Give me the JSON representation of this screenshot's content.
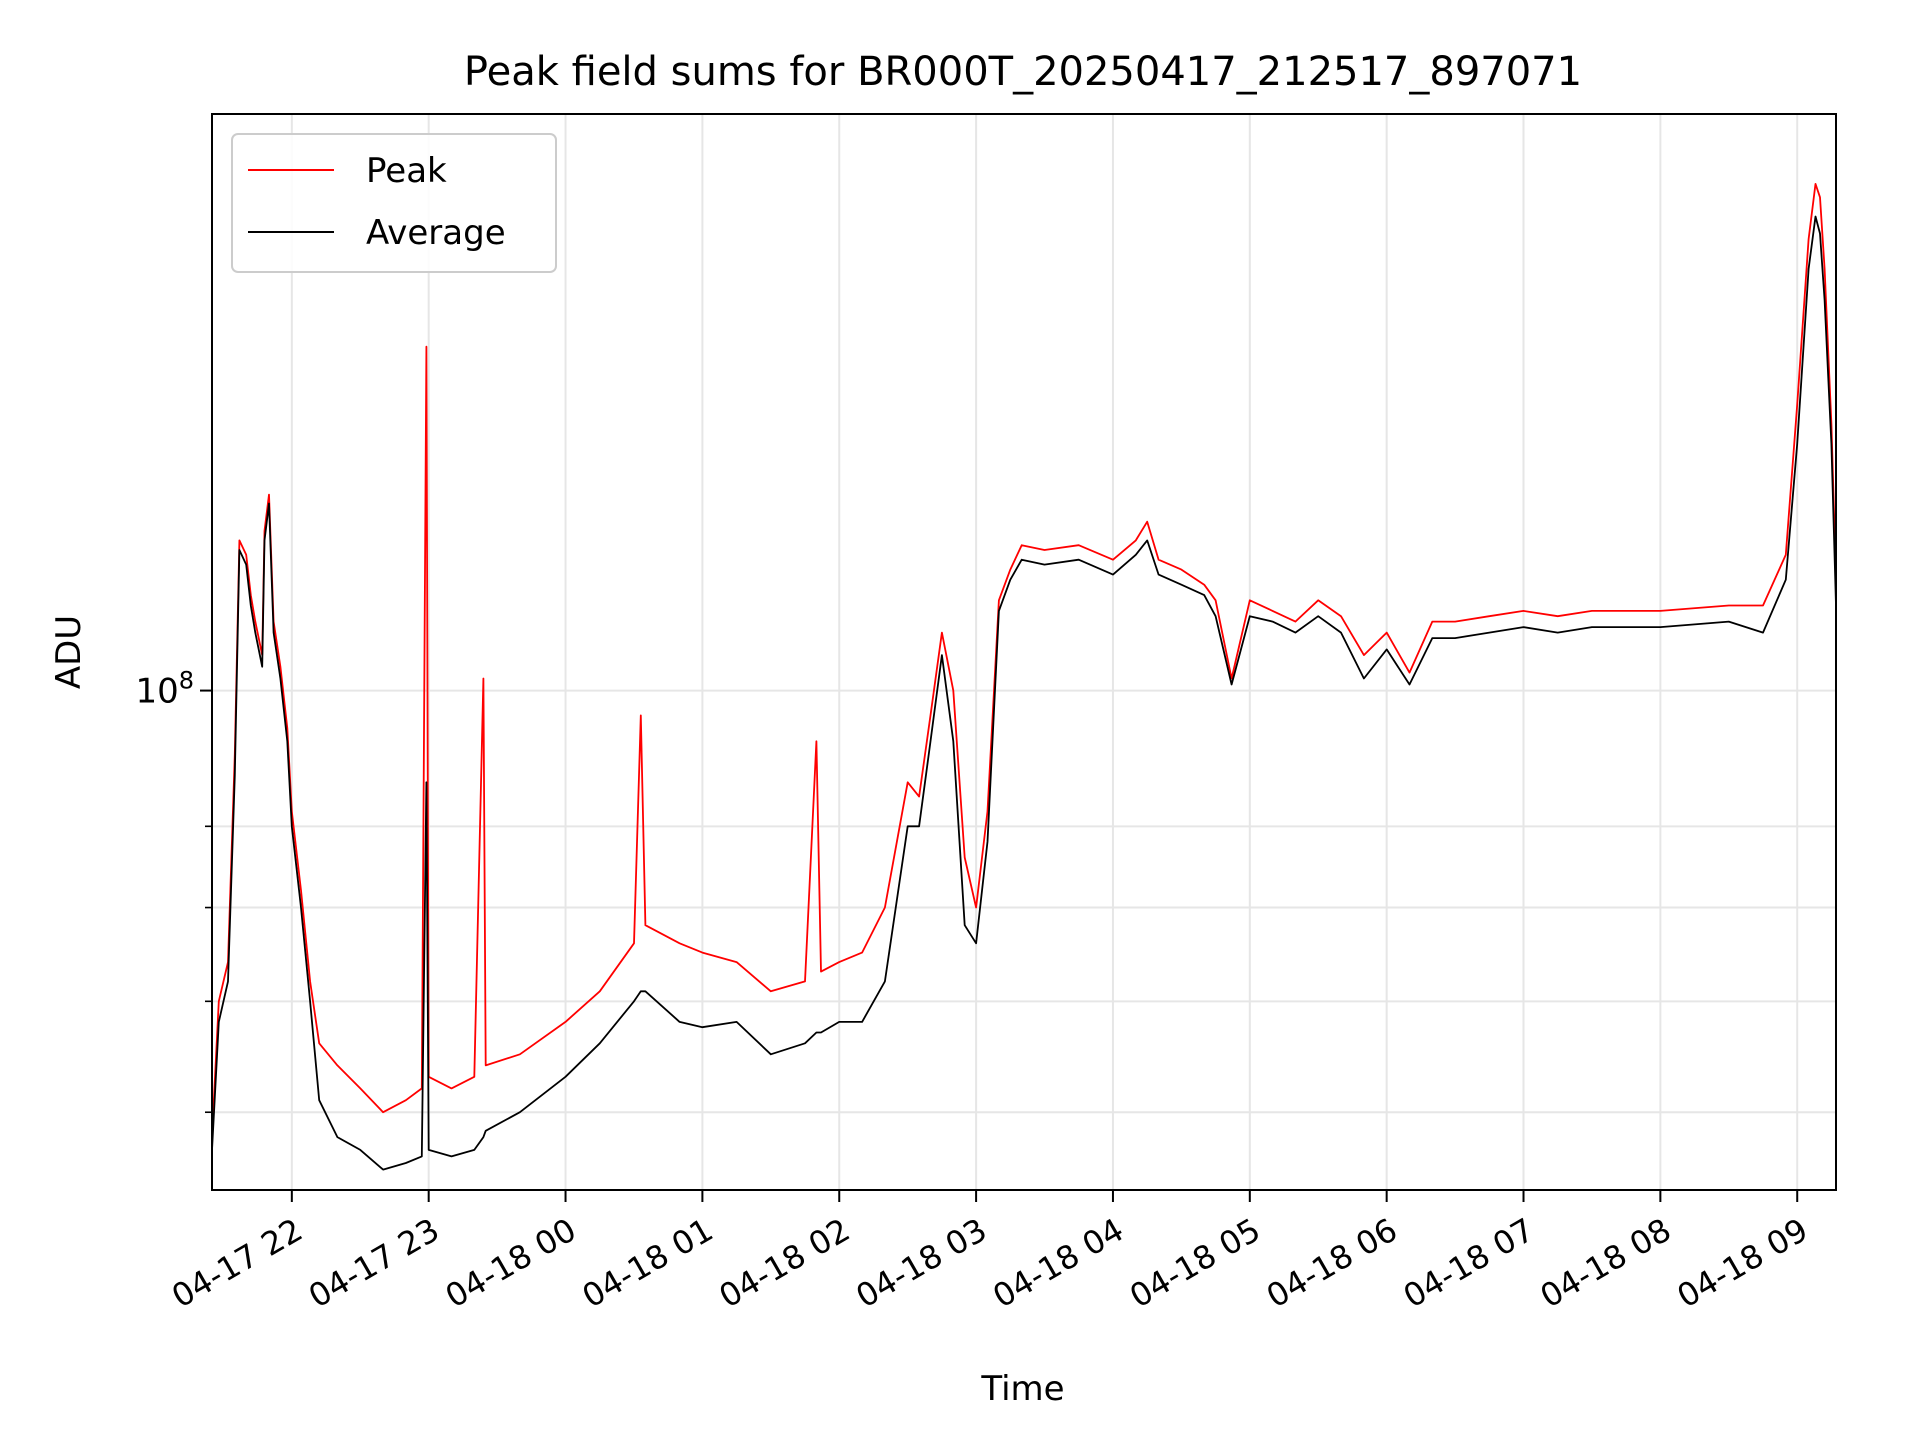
{
  "chart_data": {
    "type": "line",
    "title": "Peak field sums for BR000T_20250417_212517_897071",
    "xlabel": "Time",
    "ylabel": "ADU",
    "y_scale": "log",
    "ylim": [
      44000000,
      258000000
    ],
    "xlim": [
      "2025-04-17T21:25",
      "2025-04-18T09:17"
    ],
    "grid": true,
    "legend_position": "top-left",
    "x_ticks": [
      "04-17 22",
      "04-17 23",
      "04-18 00",
      "04-18 01",
      "04-18 02",
      "04-18 03",
      "04-18 04",
      "04-18 05",
      "04-18 06",
      "04-18 07",
      "04-18 08",
      "04-18 09"
    ],
    "y_major_tick": {
      "value": 100000000,
      "base": "10",
      "exponent": "8"
    },
    "y_minor_ticks": [
      50000000,
      60000000,
      70000000,
      80000000
    ],
    "colors": {
      "Peak": "#ff0000",
      "Average": "#000000"
    },
    "series": [
      {
        "name": "Peak",
        "points": [
          [
            "2025-04-17T21:25",
            48000000
          ],
          [
            "2025-04-17T21:28",
            60000000
          ],
          [
            "2025-04-17T21:32",
            64000000
          ],
          [
            "2025-04-17T21:35",
            90000000
          ],
          [
            "2025-04-17T21:37",
            128000000
          ],
          [
            "2025-04-17T21:40",
            125000000
          ],
          [
            "2025-04-17T21:42",
            117000000
          ],
          [
            "2025-04-17T21:44",
            112000000
          ],
          [
            "2025-04-17T21:47",
            106000000
          ],
          [
            "2025-04-17T21:48",
            130000000
          ],
          [
            "2025-04-17T21:50",
            138000000
          ],
          [
            "2025-04-17T21:52",
            112000000
          ],
          [
            "2025-04-17T21:55",
            104000000
          ],
          [
            "2025-04-17T21:58",
            94000000
          ],
          [
            "2025-04-17T22:00",
            82000000
          ],
          [
            "2025-04-17T22:04",
            72000000
          ],
          [
            "2025-04-17T22:08",
            62000000
          ],
          [
            "2025-04-17T22:12",
            56000000
          ],
          [
            "2025-04-17T22:20",
            54000000
          ],
          [
            "2025-04-17T22:30",
            52000000
          ],
          [
            "2025-04-17T22:40",
            50000000
          ],
          [
            "2025-04-17T22:50",
            51000000
          ],
          [
            "2025-04-17T22:57",
            52000000
          ],
          [
            "2025-04-17T22:59",
            176000000
          ],
          [
            "2025-04-17T23:00",
            53000000
          ],
          [
            "2025-04-17T23:10",
            52000000
          ],
          [
            "2025-04-17T23:20",
            53000000
          ],
          [
            "2025-04-17T23:24",
            102000000
          ],
          [
            "2025-04-17T23:25",
            54000000
          ],
          [
            "2025-04-17T23:40",
            55000000
          ],
          [
            "2025-04-18T00:00",
            58000000
          ],
          [
            "2025-04-18T00:15",
            61000000
          ],
          [
            "2025-04-18T00:30",
            66000000
          ],
          [
            "2025-04-18T00:33",
            96000000
          ],
          [
            "2025-04-18T00:35",
            68000000
          ],
          [
            "2025-04-18T00:50",
            66000000
          ],
          [
            "2025-04-18T01:00",
            65000000
          ],
          [
            "2025-04-18T01:15",
            64000000
          ],
          [
            "2025-04-18T01:30",
            61000000
          ],
          [
            "2025-04-18T01:45",
            62000000
          ],
          [
            "2025-04-18T01:50",
            92000000
          ],
          [
            "2025-04-18T01:52",
            63000000
          ],
          [
            "2025-04-18T02:00",
            64000000
          ],
          [
            "2025-04-18T02:10",
            65000000
          ],
          [
            "2025-04-18T02:20",
            70000000
          ],
          [
            "2025-04-18T02:30",
            86000000
          ],
          [
            "2025-04-18T02:35",
            84000000
          ],
          [
            "2025-04-18T02:40",
            96000000
          ],
          [
            "2025-04-18T02:45",
            110000000
          ],
          [
            "2025-04-18T02:50",
            100000000
          ],
          [
            "2025-04-18T02:55",
            76000000
          ],
          [
            "2025-04-18T03:00",
            70000000
          ],
          [
            "2025-04-18T03:05",
            82000000
          ],
          [
            "2025-04-18T03:10",
            116000000
          ],
          [
            "2025-04-18T03:15",
            122000000
          ],
          [
            "2025-04-18T03:20",
            127000000
          ],
          [
            "2025-04-18T03:30",
            126000000
          ],
          [
            "2025-04-18T03:45",
            127000000
          ],
          [
            "2025-04-18T04:00",
            124000000
          ],
          [
            "2025-04-18T04:10",
            128000000
          ],
          [
            "2025-04-18T04:15",
            132000000
          ],
          [
            "2025-04-18T04:20",
            124000000
          ],
          [
            "2025-04-18T04:30",
            122000000
          ],
          [
            "2025-04-18T04:40",
            119000000
          ],
          [
            "2025-04-18T04:45",
            116000000
          ],
          [
            "2025-04-18T04:52",
            102000000
          ],
          [
            "2025-04-18T05:00",
            116000000
          ],
          [
            "2025-04-18T05:10",
            114000000
          ],
          [
            "2025-04-18T05:20",
            112000000
          ],
          [
            "2025-04-18T05:30",
            116000000
          ],
          [
            "2025-04-18T05:40",
            113000000
          ],
          [
            "2025-04-18T05:50",
            106000000
          ],
          [
            "2025-04-18T06:00",
            110000000
          ],
          [
            "2025-04-18T06:10",
            103000000
          ],
          [
            "2025-04-18T06:20",
            112000000
          ],
          [
            "2025-04-18T06:30",
            112000000
          ],
          [
            "2025-04-18T06:45",
            113000000
          ],
          [
            "2025-04-18T07:00",
            114000000
          ],
          [
            "2025-04-18T07:15",
            113000000
          ],
          [
            "2025-04-18T07:30",
            114000000
          ],
          [
            "2025-04-18T07:45",
            114000000
          ],
          [
            "2025-04-18T08:00",
            114000000
          ],
          [
            "2025-04-18T08:30",
            115000000
          ],
          [
            "2025-04-18T08:45",
            115000000
          ],
          [
            "2025-04-18T08:55",
            125000000
          ],
          [
            "2025-04-18T09:00",
            160000000
          ],
          [
            "2025-04-18T09:05",
            210000000
          ],
          [
            "2025-04-18T09:08",
            230000000
          ],
          [
            "2025-04-18T09:10",
            225000000
          ],
          [
            "2025-04-18T09:12",
            200000000
          ],
          [
            "2025-04-18T09:15",
            155000000
          ],
          [
            "2025-04-18T09:17",
            120000000
          ]
        ]
      },
      {
        "name": "Average",
        "points": [
          [
            "2025-04-17T21:25",
            47000000
          ],
          [
            "2025-04-17T21:28",
            58000000
          ],
          [
            "2025-04-17T21:32",
            62000000
          ],
          [
            "2025-04-17T21:35",
            87000000
          ],
          [
            "2025-04-17T21:37",
            126000000
          ],
          [
            "2025-04-17T21:40",
            123000000
          ],
          [
            "2025-04-17T21:42",
            115000000
          ],
          [
            "2025-04-17T21:44",
            110000000
          ],
          [
            "2025-04-17T21:47",
            104000000
          ],
          [
            "2025-04-17T21:48",
            128000000
          ],
          [
            "2025-04-17T21:50",
            136000000
          ],
          [
            "2025-04-17T21:52",
            110000000
          ],
          [
            "2025-04-17T21:55",
            102000000
          ],
          [
            "2025-04-17T21:58",
            92000000
          ],
          [
            "2025-04-17T22:00",
            80000000
          ],
          [
            "2025-04-17T22:04",
            70000000
          ],
          [
            "2025-04-17T22:08",
            60000000
          ],
          [
            "2025-04-17T22:12",
            51000000
          ],
          [
            "2025-04-17T22:20",
            48000000
          ],
          [
            "2025-04-17T22:30",
            47000000
          ],
          [
            "2025-04-17T22:40",
            45500000
          ],
          [
            "2025-04-17T22:50",
            46000000
          ],
          [
            "2025-04-17T22:57",
            46500000
          ],
          [
            "2025-04-17T22:59",
            86000000
          ],
          [
            "2025-04-17T23:00",
            47000000
          ],
          [
            "2025-04-17T23:10",
            46500000
          ],
          [
            "2025-04-17T23:20",
            47000000
          ],
          [
            "2025-04-17T23:24",
            48000000
          ],
          [
            "2025-04-17T23:25",
            48500000
          ],
          [
            "2025-04-17T23:40",
            50000000
          ],
          [
            "2025-04-18T00:00",
            53000000
          ],
          [
            "2025-04-18T00:15",
            56000000
          ],
          [
            "2025-04-18T00:30",
            60000000
          ],
          [
            "2025-04-18T00:33",
            61000000
          ],
          [
            "2025-04-18T00:35",
            61000000
          ],
          [
            "2025-04-18T00:50",
            58000000
          ],
          [
            "2025-04-18T01:00",
            57500000
          ],
          [
            "2025-04-18T01:15",
            58000000
          ],
          [
            "2025-04-18T01:30",
            55000000
          ],
          [
            "2025-04-18T01:45",
            56000000
          ],
          [
            "2025-04-18T01:50",
            57000000
          ],
          [
            "2025-04-18T01:52",
            57000000
          ],
          [
            "2025-04-18T02:00",
            58000000
          ],
          [
            "2025-04-18T02:10",
            58000000
          ],
          [
            "2025-04-18T02:20",
            62000000
          ],
          [
            "2025-04-18T02:30",
            80000000
          ],
          [
            "2025-04-18T02:35",
            80000000
          ],
          [
            "2025-04-18T02:40",
            92000000
          ],
          [
            "2025-04-18T02:45",
            106000000
          ],
          [
            "2025-04-18T02:50",
            92000000
          ],
          [
            "2025-04-18T02:55",
            68000000
          ],
          [
            "2025-04-18T03:00",
            66000000
          ],
          [
            "2025-04-18T03:05",
            78000000
          ],
          [
            "2025-04-18T03:10",
            114000000
          ],
          [
            "2025-04-18T03:15",
            120000000
          ],
          [
            "2025-04-18T03:20",
            124000000
          ],
          [
            "2025-04-18T03:30",
            123000000
          ],
          [
            "2025-04-18T03:45",
            124000000
          ],
          [
            "2025-04-18T04:00",
            121000000
          ],
          [
            "2025-04-18T04:10",
            125000000
          ],
          [
            "2025-04-18T04:15",
            128000000
          ],
          [
            "2025-04-18T04:20",
            121000000
          ],
          [
            "2025-04-18T04:30",
            119000000
          ],
          [
            "2025-04-18T04:40",
            117000000
          ],
          [
            "2025-04-18T04:45",
            113000000
          ],
          [
            "2025-04-18T04:52",
            101000000
          ],
          [
            "2025-04-18T05:00",
            113000000
          ],
          [
            "2025-04-18T05:10",
            112000000
          ],
          [
            "2025-04-18T05:20",
            110000000
          ],
          [
            "2025-04-18T05:30",
            113000000
          ],
          [
            "2025-04-18T05:40",
            110000000
          ],
          [
            "2025-04-18T05:50",
            102000000
          ],
          [
            "2025-04-18T06:00",
            107000000
          ],
          [
            "2025-04-18T06:10",
            101000000
          ],
          [
            "2025-04-18T06:20",
            109000000
          ],
          [
            "2025-04-18T06:30",
            109000000
          ],
          [
            "2025-04-18T06:45",
            110000000
          ],
          [
            "2025-04-18T07:00",
            111000000
          ],
          [
            "2025-04-18T07:15",
            110000000
          ],
          [
            "2025-04-18T07:30",
            111000000
          ],
          [
            "2025-04-18T07:45",
            111000000
          ],
          [
            "2025-04-18T08:00",
            111000000
          ],
          [
            "2025-04-18T08:30",
            112000000
          ],
          [
            "2025-04-18T08:45",
            110000000
          ],
          [
            "2025-04-18T08:55",
            120000000
          ],
          [
            "2025-04-18T09:00",
            150000000
          ],
          [
            "2025-04-18T09:05",
            200000000
          ],
          [
            "2025-04-18T09:08",
            218000000
          ],
          [
            "2025-04-18T09:10",
            212000000
          ],
          [
            "2025-04-18T09:12",
            190000000
          ],
          [
            "2025-04-18T09:15",
            150000000
          ],
          [
            "2025-04-18T09:17",
            115000000
          ]
        ]
      }
    ]
  }
}
